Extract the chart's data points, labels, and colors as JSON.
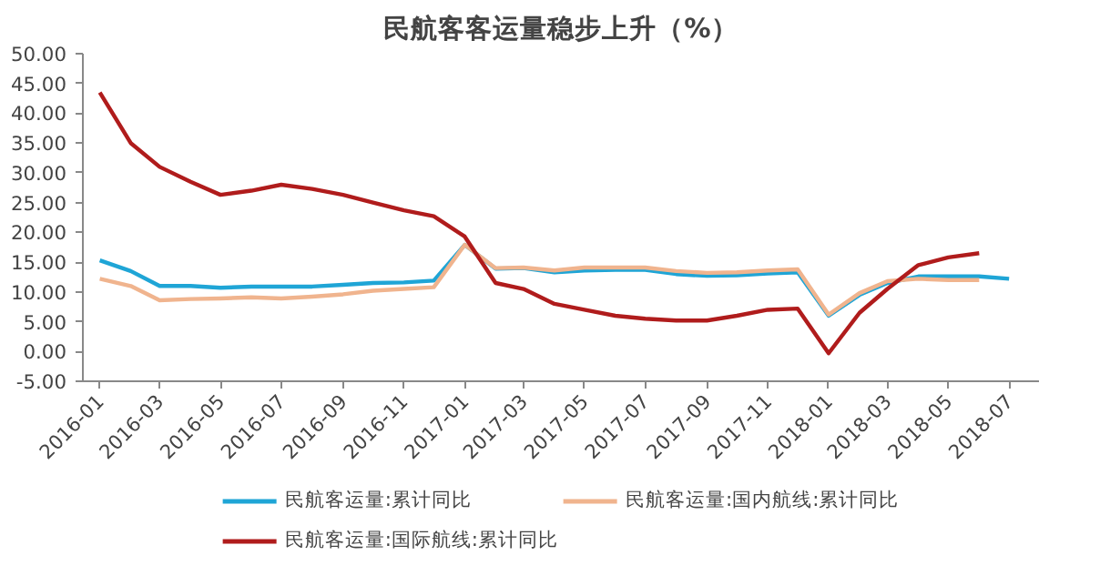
{
  "chart_data": {
    "type": "line",
    "title": "民航客客运量稳步上升（%）",
    "x": [
      "2016-01",
      "2016-02",
      "2016-03",
      "2016-04",
      "2016-05",
      "2016-06",
      "2016-07",
      "2016-08",
      "2016-09",
      "2016-10",
      "2016-11",
      "2016-12",
      "2017-01",
      "2017-02",
      "2017-03",
      "2017-04",
      "2017-05",
      "2017-06",
      "2017-07",
      "2017-08",
      "2017-09",
      "2017-10",
      "2017-11",
      "2017-12",
      "2018-01",
      "2018-02",
      "2018-03",
      "2018-04",
      "2018-05",
      "2018-06",
      "2018-07"
    ],
    "series": [
      {
        "name": "民航客运量:累计同比",
        "color": "#1fa5d6",
        "values": [
          15.3,
          13.5,
          11,
          11,
          10.7,
          10.9,
          10.9,
          10.9,
          11.2,
          11.5,
          11.6,
          11.9,
          17.9,
          13.9,
          14,
          13.3,
          13.6,
          13.7,
          13.7,
          13,
          12.7,
          12.8,
          13.1,
          13.3,
          6,
          9.5,
          11.5,
          12.6,
          12.6,
          12.6,
          12.2
        ]
      },
      {
        "name": "民航客运量:国内航线:累计同比",
        "color": "#f0b48e",
        "values": [
          12.2,
          11,
          8.6,
          8.8,
          8.9,
          9.1,
          8.9,
          9.2,
          9.6,
          10.2,
          10.5,
          10.8,
          17.9,
          14,
          14.1,
          13.6,
          14.1,
          14.1,
          14.1,
          13.5,
          13.2,
          13.3,
          13.6,
          13.8,
          6.2,
          9.8,
          11.8,
          12.2,
          12,
          12,
          null
        ]
      },
      {
        "name": "民航客运量:国际航线:累计同比",
        "color": "#b01c1c",
        "values": [
          43.5,
          35,
          31,
          28.5,
          26.3,
          27,
          28,
          27.3,
          26.3,
          25,
          23.7,
          22.7,
          19.3,
          11.5,
          10.5,
          8,
          7,
          6,
          5.5,
          5.2,
          5.2,
          6,
          7,
          7.2,
          -0.3,
          6.5,
          10.5,
          14.5,
          15.8,
          16.5,
          null
        ]
      }
    ],
    "xlim": [
      "2015-12-15",
      "2018-07-31"
    ],
    "xticks": [
      "2016-01",
      "2016-03",
      "2016-05",
      "2016-07",
      "2016-09",
      "2016-11",
      "2017-01",
      "2017-03",
      "2017-05",
      "2017-07",
      "2017-09",
      "2017-11",
      "2018-01",
      "2018-03",
      "2018-05",
      "2018-07"
    ],
    "ylim": [
      -5,
      50
    ],
    "yticks": [
      {
        "value": -5,
        "label": "-5.00"
      },
      {
        "value": 0,
        "label": "0.00"
      },
      {
        "value": 5,
        "label": "5.00"
      },
      {
        "value": 10,
        "label": "10.00"
      },
      {
        "value": 15,
        "label": "15.00"
      },
      {
        "value": 20,
        "label": "20.00"
      },
      {
        "value": 25,
        "label": "25.00"
      },
      {
        "value": 30,
        "label": "30.00"
      },
      {
        "value": 35,
        "label": "35.00"
      },
      {
        "value": 40,
        "label": "40.00"
      },
      {
        "value": 45,
        "label": "45.00"
      },
      {
        "value": 50,
        "label": "50.00"
      }
    ],
    "grid": false,
    "legend": "bottom",
    "marker": "none",
    "line_style": "solid"
  }
}
